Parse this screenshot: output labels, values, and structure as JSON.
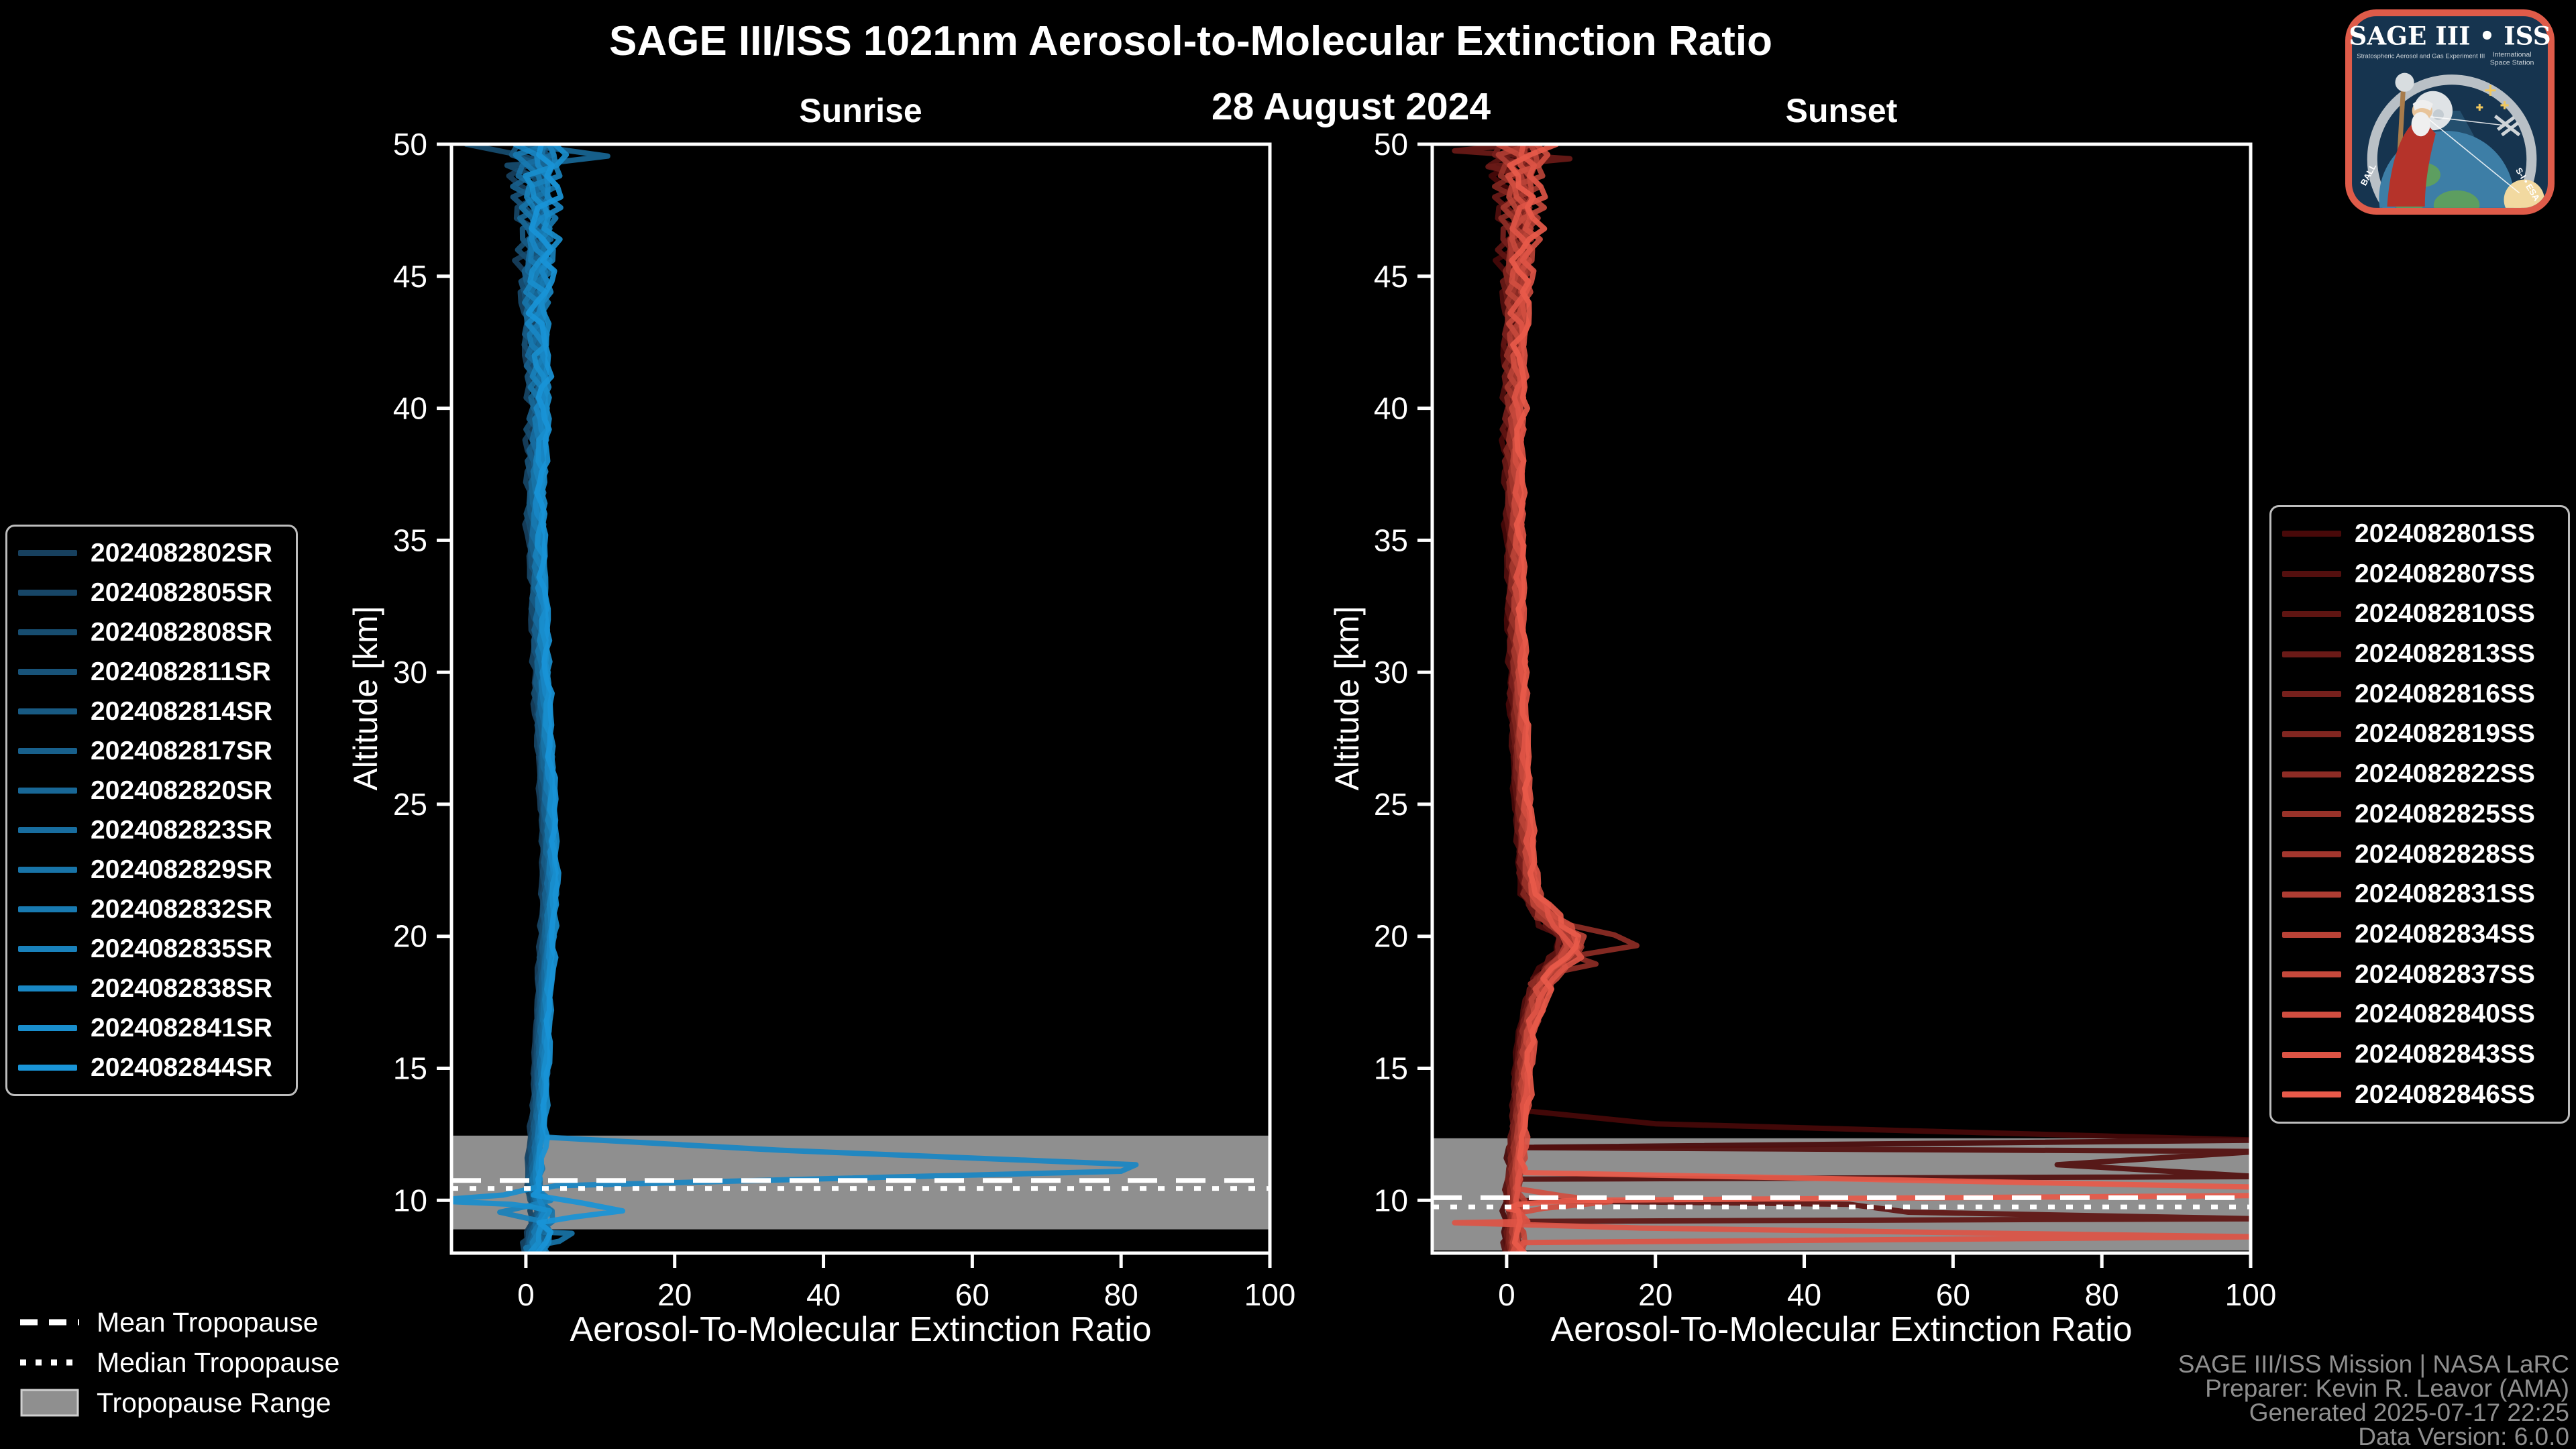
{
  "header": {
    "title": "SAGE III/ISS 1021nm Aerosol-to-Molecular Extinction Ratio",
    "date": "28 August 2024"
  },
  "colors": {
    "background": "#000000",
    "axis": "#ffffff",
    "tick_label": "#ffffff",
    "tropopause_band": "#8f8f8f",
    "tropopause_band_edge": "#d0d0d0",
    "tropopause_line": "#ffffff",
    "legend_border": "#bdbdbd",
    "footer_text": "#8f8f8f"
  },
  "chart_data": {
    "type": "line",
    "title": "SAGE III/ISS 1021nm Aerosol-to-Molecular Extinction Ratio",
    "subtitle": "28 August 2024",
    "legend_position": "outside-left-and-right",
    "grid": false,
    "panels": [
      {
        "id": "sunrise",
        "title": "Sunrise",
        "xlabel": "Aerosol-To-Molecular Extinction Ratio",
        "ylabel": "Altitude [km]",
        "xlim": [
          -10,
          100
        ],
        "ylim": [
          8,
          50
        ],
        "xticks": [
          0,
          20,
          40,
          60,
          80,
          100
        ],
        "yticks": [
          10,
          15,
          20,
          25,
          30,
          35,
          40,
          45,
          50
        ],
        "tropopause": {
          "mean_km": 10.75,
          "median_km": 10.45,
          "range_km": [
            8.9,
            12.45
          ]
        },
        "base_profile": [
          [
            50,
            2.0
          ],
          [
            48,
            1.6
          ],
          [
            46,
            1.8
          ],
          [
            44,
            1.3
          ],
          [
            42,
            1.6
          ],
          [
            40,
            1.9
          ],
          [
            38,
            1.5
          ],
          [
            36,
            1.3
          ],
          [
            34,
            1.6
          ],
          [
            32,
            1.9
          ],
          [
            30,
            2.1
          ],
          [
            28,
            2.4
          ],
          [
            26,
            2.8
          ],
          [
            24,
            3.1
          ],
          [
            22,
            3.2
          ],
          [
            20,
            2.9
          ],
          [
            18,
            2.5
          ],
          [
            16,
            2.2
          ],
          [
            14,
            1.9
          ],
          [
            12.5,
            1.6
          ],
          [
            11.5,
            1.3
          ],
          [
            10.8,
            1.1
          ],
          [
            10.2,
            1.4
          ],
          [
            9.6,
            2.4
          ],
          [
            9.0,
            1.8
          ],
          [
            8.5,
            1.3
          ],
          [
            8.0,
            1.0
          ]
        ],
        "noise_amp": [
          [
            50,
            4.2
          ],
          [
            48,
            2.8
          ],
          [
            45,
            2.2
          ],
          [
            42,
            1.4
          ],
          [
            38,
            0.9
          ],
          [
            34,
            0.7
          ],
          [
            30,
            0.6
          ],
          [
            25,
            0.55
          ],
          [
            20,
            0.5
          ],
          [
            16,
            0.45
          ],
          [
            13,
            0.5
          ],
          [
            11,
            0.7
          ],
          [
            10,
            1.2
          ],
          [
            9,
            1.6
          ],
          [
            8,
            1.6
          ]
        ],
        "series": [
          {
            "label": "2024082802SR",
            "color": "#17405E"
          },
          {
            "label": "2024082805SR",
            "color": "#174667"
          },
          {
            "label": "2024082808SR",
            "color": "#174D70"
          },
          {
            "label": "2024082811SR",
            "color": "#185379"
          },
          {
            "label": "2024082814SR",
            "color": "#185A83"
          },
          {
            "label": "2024082817SR",
            "color": "#18608C"
          },
          {
            "label": "2024082820SR",
            "color": "#186796"
          },
          {
            "label": "2024082823SR",
            "color": "#186D9F"
          },
          {
            "label": "2024082829SR",
            "color": "#1874A8"
          },
          {
            "label": "2024082832SR",
            "color": "#187AB1"
          },
          {
            "label": "2024082835SR",
            "color": "#1981BB"
          },
          {
            "label": "2024082838SR",
            "color": "#1987C4"
          },
          {
            "label": "2024082841SR",
            "color": "#198ECD"
          },
          {
            "label": "2024082844SR",
            "color": "#1994D7"
          }
        ],
        "anomalies": [
          {
            "series": "2024082838SR",
            "points": [
              [
                12.4,
                2
              ],
              [
                11.9,
                34
              ],
              [
                11.35,
                82
              ],
              [
                11.1,
                80
              ],
              [
                10.8,
                38
              ],
              [
                10.55,
                4
              ],
              [
                10.4,
                1.5
              ]
            ]
          },
          {
            "series": "2024082841SR",
            "points": [
              [
                10.5,
                1.5
              ],
              [
                10.2,
                -3
              ],
              [
                10.05,
                -10
              ],
              [
                9.95,
                -10
              ],
              [
                9.85,
                -2
              ],
              [
                9.75,
                0.8
              ]
            ]
          },
          {
            "series": "2024082844SR",
            "points": [
              [
                10.2,
                1
              ],
              [
                9.9,
                7.5
              ],
              [
                9.6,
                13
              ],
              [
                9.35,
                6
              ],
              [
                9.15,
                1.8
              ]
            ]
          },
          {
            "series": "2024082835SR",
            "points": [
              [
                9.8,
                0.5
              ],
              [
                9.55,
                -3.5
              ],
              [
                9.3,
                0.5
              ]
            ]
          },
          {
            "series": "2024082829SR",
            "points": [
              [
                8.75,
                6.2
              ],
              [
                8.45,
                4.5
              ],
              [
                8.2,
                0
              ]
            ]
          },
          {
            "series": "2024082808SR",
            "points": [
              [
                50,
                -8
              ],
              [
                49.6,
                -1
              ],
              [
                49.3,
                2.5
              ]
            ]
          },
          {
            "series": "2024082820SR",
            "points": [
              [
                49.9,
                2
              ],
              [
                49.55,
                11
              ],
              [
                49.2,
                0.5
              ]
            ]
          }
        ]
      },
      {
        "id": "sunset",
        "title": "Sunset",
        "xlabel": "Aerosol-To-Molecular Extinction Ratio",
        "ylabel": "Altitude [km]",
        "xlim": [
          -10,
          100
        ],
        "ylim": [
          8,
          50
        ],
        "xticks": [
          0,
          20,
          40,
          60,
          80,
          100
        ],
        "yticks": [
          10,
          15,
          20,
          25,
          30,
          35,
          40,
          45,
          50
        ],
        "tropopause": {
          "mean_km": 10.1,
          "median_km": 9.75,
          "range_km": [
            8.1,
            12.35
          ]
        },
        "base_profile": [
          [
            50,
            2.2
          ],
          [
            48,
            2.0
          ],
          [
            46,
            1.7
          ],
          [
            44,
            1.4
          ],
          [
            42,
            1.2
          ],
          [
            40,
            1.1
          ],
          [
            38,
            1.0
          ],
          [
            36,
            1.1
          ],
          [
            34,
            1.2
          ],
          [
            32,
            1.3
          ],
          [
            30,
            1.5
          ],
          [
            28,
            1.7
          ],
          [
            26,
            2.0
          ],
          [
            24,
            2.4
          ],
          [
            22.5,
            2.8
          ],
          [
            21.5,
            3.4
          ],
          [
            20.5,
            6.0
          ],
          [
            19.8,
            9.0
          ],
          [
            19.3,
            8.0
          ],
          [
            18.6,
            5.5
          ],
          [
            17.8,
            4.0
          ],
          [
            16.5,
            2.8
          ],
          [
            15,
            2.2
          ],
          [
            13.5,
            1.8
          ],
          [
            12.5,
            1.5
          ],
          [
            11.5,
            1.2
          ],
          [
            10.5,
            1.0
          ],
          [
            9.5,
            1.1
          ],
          [
            8.5,
            1.0
          ],
          [
            8,
            1.0
          ]
        ],
        "noise_amp": [
          [
            50,
            4.0
          ],
          [
            48,
            3.0
          ],
          [
            45,
            2.0
          ],
          [
            42,
            1.2
          ],
          [
            38,
            0.8
          ],
          [
            34,
            0.7
          ],
          [
            30,
            0.6
          ],
          [
            26,
            0.6
          ],
          [
            22,
            0.8
          ],
          [
            20,
            2.0
          ],
          [
            19,
            1.8
          ],
          [
            17,
            1.0
          ],
          [
            15,
            0.7
          ],
          [
            13,
            0.6
          ],
          [
            11.5,
            0.8
          ],
          [
            10,
            1.0
          ],
          [
            9,
            1.2
          ],
          [
            8,
            1.2
          ]
        ],
        "series": [
          {
            "label": "2024082801SS",
            "color": "#480909"
          },
          {
            "label": "2024082807SS",
            "color": "#530F0E"
          },
          {
            "label": "2024082810SS",
            "color": "#5F1512"
          },
          {
            "label": "2024082813SS",
            "color": "#6A1A17"
          },
          {
            "label": "2024082816SS",
            "color": "#76201C"
          },
          {
            "label": "2024082819SS",
            "color": "#812620"
          },
          {
            "label": "2024082822SS",
            "color": "#8D2C25"
          },
          {
            "label": "2024082825SS",
            "color": "#983229"
          },
          {
            "label": "2024082828SS",
            "color": "#A3372E"
          },
          {
            "label": "2024082831SS",
            "color": "#AF3D33"
          },
          {
            "label": "2024082834SS",
            "color": "#BA4337"
          },
          {
            "label": "2024082837SS",
            "color": "#C6493C"
          },
          {
            "label": "2024082840SS",
            "color": "#D14E40"
          },
          {
            "label": "2024082843SS",
            "color": "#DD5445"
          },
          {
            "label": "2024082846SS",
            "color": "#E85A4A"
          }
        ],
        "anomalies": [
          {
            "series": "2024082801SS",
            "points": [
              [
                13.4,
                2.2
              ],
              [
                12.9,
                20
              ],
              [
                12.5,
                72
              ],
              [
                12.28,
                101
              ]
            ]
          },
          {
            "series": "2024082807SS",
            "points": [
              [
                11.85,
                101
              ],
              [
                11.35,
                74
              ],
              [
                10.9,
                101
              ]
            ]
          },
          {
            "series": "2024082810SS",
            "points": [
              [
                9.85,
                46
              ],
              [
                9.55,
                54
              ],
              [
                9.3,
                101
              ]
            ]
          },
          {
            "series": "2024082813SS",
            "points": [
              [
                49.75,
                -7
              ],
              [
                49.45,
                8.5
              ],
              [
                49.15,
                -2.5
              ],
              [
                48.9,
                1.5
              ]
            ]
          },
          {
            "series": "2024082822SS",
            "points": [
              [
                20.7,
                4
              ],
              [
                20.05,
                14.5
              ],
              [
                19.65,
                17.5
              ],
              [
                19.25,
                9
              ],
              [
                18.95,
                12
              ],
              [
                18.55,
                5
              ],
              [
                18.2,
                3.2
              ]
            ]
          },
          {
            "series": "2024082840SS",
            "points": [
              [
                10.45,
                1.2
              ],
              [
                10.15,
                8
              ],
              [
                9.95,
                14
              ],
              [
                9.7,
                5
              ],
              [
                9.5,
                1.2
              ]
            ]
          },
          {
            "series": "2024082843SS",
            "points": [
              [
                9.15,
                -7
              ],
              [
                8.95,
                18
              ],
              [
                8.75,
                66
              ],
              [
                8.62,
                101
              ]
            ]
          },
          {
            "series": "2024082846SS",
            "points": [
              [
                11.05,
                2.5
              ],
              [
                10.5,
                101
              ],
              [
                10.18,
                101
              ],
              [
                10.0,
                9
              ],
              [
                9.85,
                1.5
              ],
              [
                9.68,
                0.2
              ]
            ]
          }
        ]
      }
    ]
  },
  "tropopause_legend": {
    "mean": "Mean Tropopause",
    "median": "Median Tropopause",
    "range": "Tropopause Range"
  },
  "footer": {
    "line1": "SAGE III/ISS Mission | NASA LaRC",
    "line2": "Preparer: Kevin R. Leavor (AMA)",
    "line3": "Generated 2025-07-17 22:25",
    "line4": "Data Version: 6.0.0"
  },
  "logo": {
    "title": "SAGE III • ISS",
    "subtitle_left": "Stratospheric Aerosol and Gas Experiment III",
    "subtitle_right_1": "International",
    "subtitle_right_2": "Space Station",
    "ring_text_left": "BALL",
    "ring_text_right": "S-I • ESA",
    "border_color": "#df5b49",
    "field_color": "#16344f"
  }
}
